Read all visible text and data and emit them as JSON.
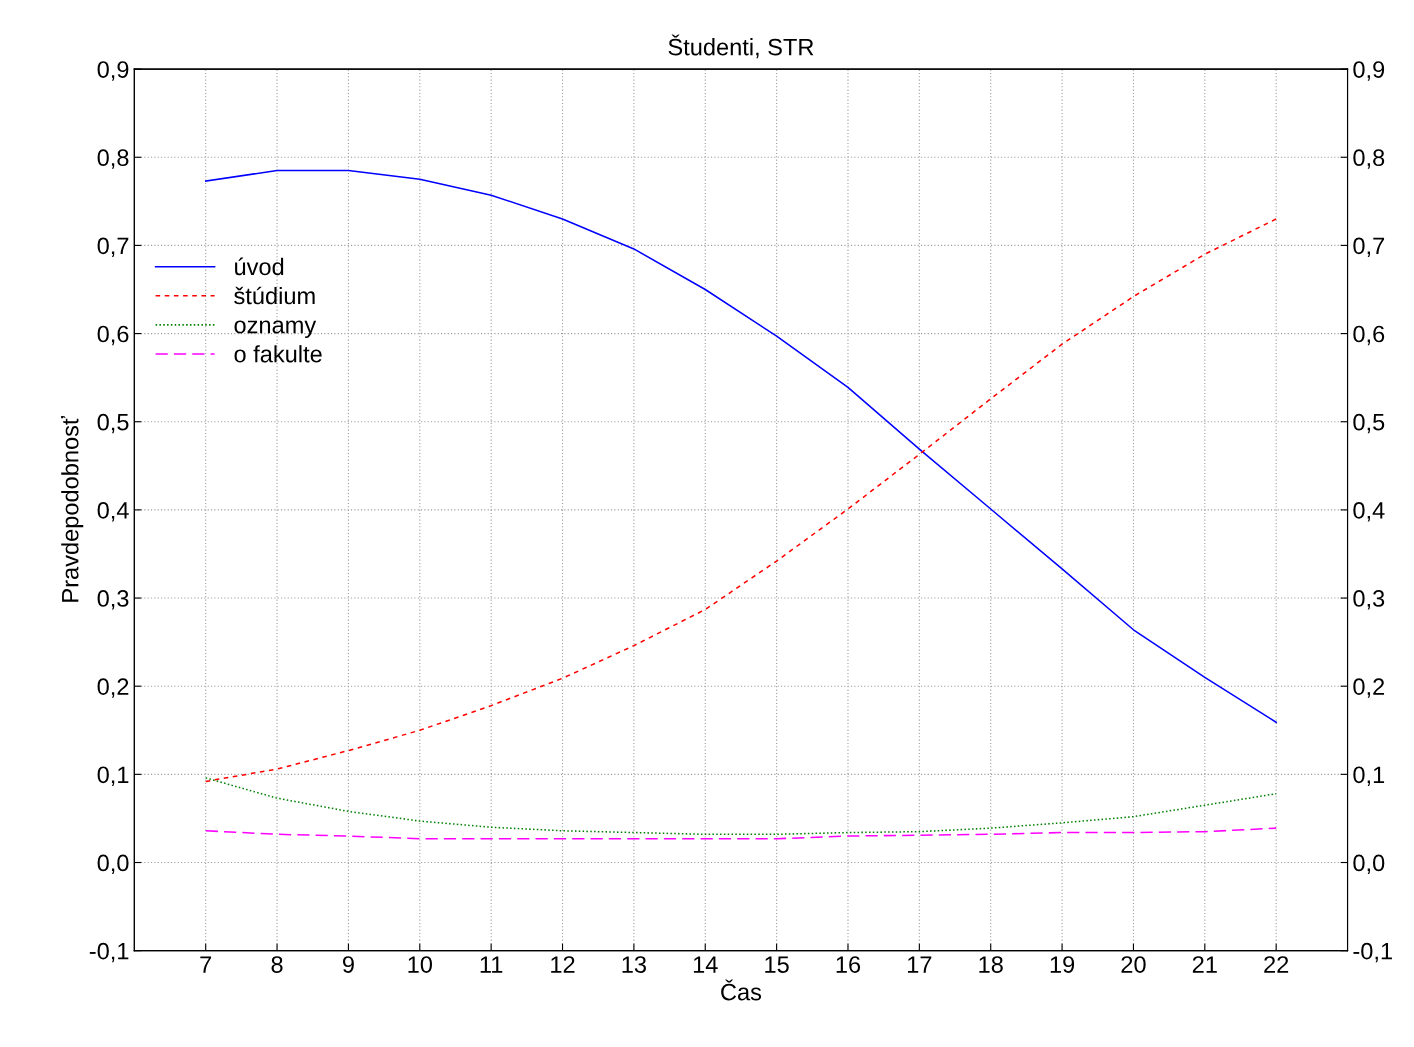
{
  "chart_data": {
    "type": "line",
    "title": "Študenti, STR",
    "xlabel": "Čas",
    "ylabel": "Pravdepodobnosť",
    "x": [
      7,
      8,
      9,
      10,
      11,
      12,
      13,
      14,
      15,
      16,
      17,
      18,
      19,
      20,
      21,
      22
    ],
    "series": [
      {
        "name": "úvod",
        "color": "#0000ff",
        "line_style": "solid",
        "values": [
          0.773,
          0.785,
          0.785,
          0.775,
          0.757,
          0.73,
          0.696,
          0.65,
          0.597,
          0.539,
          0.469,
          0.401,
          0.333,
          0.264,
          0.21,
          0.159
        ]
      },
      {
        "name": "štúdium",
        "color": "#ff0000",
        "line_style": "dashed",
        "values": [
          0.092,
          0.106,
          0.127,
          0.15,
          0.178,
          0.209,
          0.246,
          0.287,
          0.342,
          0.401,
          0.463,
          0.526,
          0.588,
          0.642,
          0.69,
          0.73
        ]
      },
      {
        "name": "oznamy",
        "color": "#008000",
        "line_style": "dotted",
        "values": [
          0.096,
          0.073,
          0.058,
          0.047,
          0.04,
          0.036,
          0.034,
          0.032,
          0.032,
          0.034,
          0.035,
          0.039,
          0.045,
          0.052,
          0.065,
          0.078
        ]
      },
      {
        "name": "o fakulte",
        "color": "#ff00ff",
        "line_style": "longdash",
        "values": [
          0.036,
          0.032,
          0.03,
          0.027,
          0.027,
          0.027,
          0.027,
          0.027,
          0.027,
          0.03,
          0.031,
          0.032,
          0.034,
          0.034,
          0.035,
          0.039
        ]
      }
    ],
    "xlim": [
      6,
      23
    ],
    "xticks": [
      7,
      8,
      9,
      10,
      11,
      12,
      13,
      14,
      15,
      16,
      17,
      18,
      19,
      20,
      21,
      22
    ],
    "ylim": [
      -0.1,
      0.9
    ],
    "yticks": [
      {
        "value": -0.1,
        "label": "-0,1"
      },
      {
        "value": 0.0,
        "label": "0,0"
      },
      {
        "value": 0.1,
        "label": "0,1"
      },
      {
        "value": 0.2,
        "label": "0,2"
      },
      {
        "value": 0.3,
        "label": "0,3"
      },
      {
        "value": 0.4,
        "label": "0,4"
      },
      {
        "value": 0.5,
        "label": "0,5"
      },
      {
        "value": 0.6,
        "label": "0,6"
      },
      {
        "value": 0.7,
        "label": "0,7"
      },
      {
        "value": 0.8,
        "label": "0,8"
      },
      {
        "value": 0.9,
        "label": "0,9"
      }
    ],
    "y2lim": [
      -0.1,
      0.9
    ],
    "y2ticks": [
      {
        "value": -0.1,
        "label": "-0,1"
      },
      {
        "value": 0.0,
        "label": "0,0"
      },
      {
        "value": 0.1,
        "label": "0,1"
      },
      {
        "value": 0.2,
        "label": "0,2"
      },
      {
        "value": 0.3,
        "label": "0,3"
      },
      {
        "value": 0.4,
        "label": "0,4"
      },
      {
        "value": 0.5,
        "label": "0,5"
      },
      {
        "value": 0.6,
        "label": "0,6"
      },
      {
        "value": 0.7,
        "label": "0,7"
      },
      {
        "value": 0.8,
        "label": "0,8"
      },
      {
        "value": 0.9,
        "label": "0,9"
      }
    ],
    "grid": true,
    "legend": "top left",
    "marker": "none"
  }
}
